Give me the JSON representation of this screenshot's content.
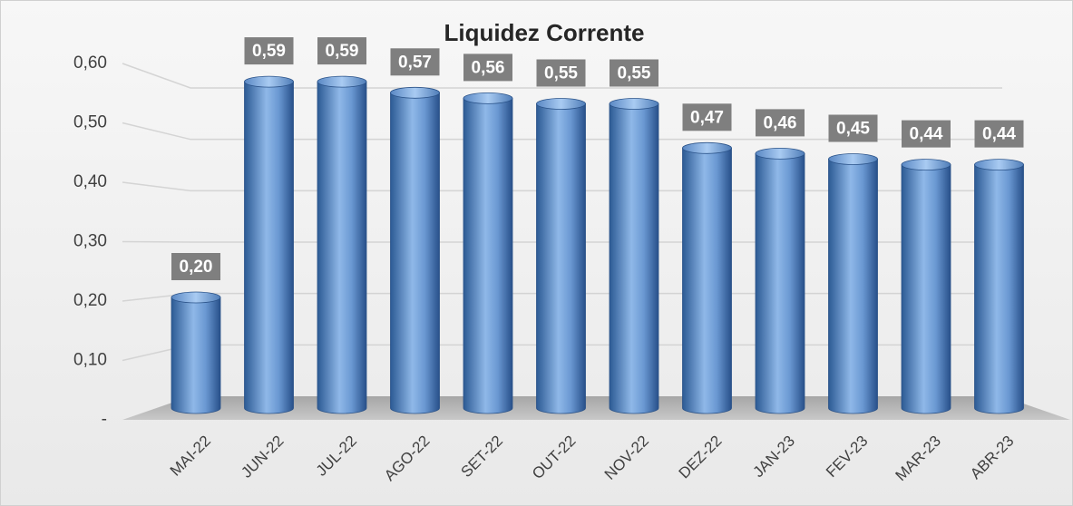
{
  "chart_data": {
    "type": "bar",
    "title": "Liquidez Corrente",
    "categories": [
      "MAI-22",
      "JUN-22",
      "JUL-22",
      "AGO-22",
      "SET-22",
      "OUT-22",
      "NOV-22",
      "DEZ-22",
      "JAN-23",
      "FEV-23",
      "MAR-23",
      "ABR-23"
    ],
    "values": [
      0.2,
      0.59,
      0.59,
      0.57,
      0.56,
      0.55,
      0.55,
      0.47,
      0.46,
      0.45,
      0.44,
      0.44
    ],
    "value_labels": [
      "0,20",
      "0,59",
      "0,59",
      "0,57",
      "0,56",
      "0,55",
      "0,55",
      "0,47",
      "0,46",
      "0,45",
      "0,44",
      "0,44"
    ],
    "color": "#4f81bd",
    "ylim": [
      0,
      0.6
    ],
    "yticks": [
      {
        "value": 0,
        "label": "-"
      },
      {
        "value": 0.1,
        "label": "0,10"
      },
      {
        "value": 0.2,
        "label": "0,20"
      },
      {
        "value": 0.3,
        "label": "0,30"
      },
      {
        "value": 0.4,
        "label": "0,40"
      },
      {
        "value": 0.5,
        "label": "0,50"
      },
      {
        "value": 0.6,
        "label": "0,60"
      }
    ],
    "grid": true
  }
}
